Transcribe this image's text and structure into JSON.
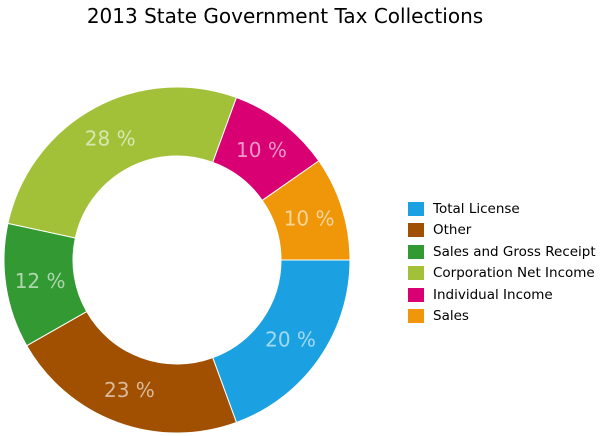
{
  "chart_data": {
    "type": "pie",
    "title": "2013 State Government Tax Collections",
    "slices": [
      {
        "label": "Total License",
        "value": 20,
        "color": "#1ba1e2",
        "data_label": "20 %"
      },
      {
        "label": "Other",
        "value": 23,
        "color": "#a05000",
        "data_label": "23 %"
      },
      {
        "label": "Sales and Gross Receipt",
        "value": 12,
        "color": "#339933",
        "data_label": "12 %"
      },
      {
        "label": "Corporation Net Income",
        "value": 28,
        "color": "#a2c139",
        "data_label": "28 %"
      },
      {
        "label": "Individual Income",
        "value": 10,
        "color": "#d80073",
        "data_label": "10 %"
      },
      {
        "label": "Sales",
        "value": 10,
        "color": "#f09609",
        "data_label": "10 %"
      }
    ],
    "legend_position": "right",
    "donut": true
  }
}
